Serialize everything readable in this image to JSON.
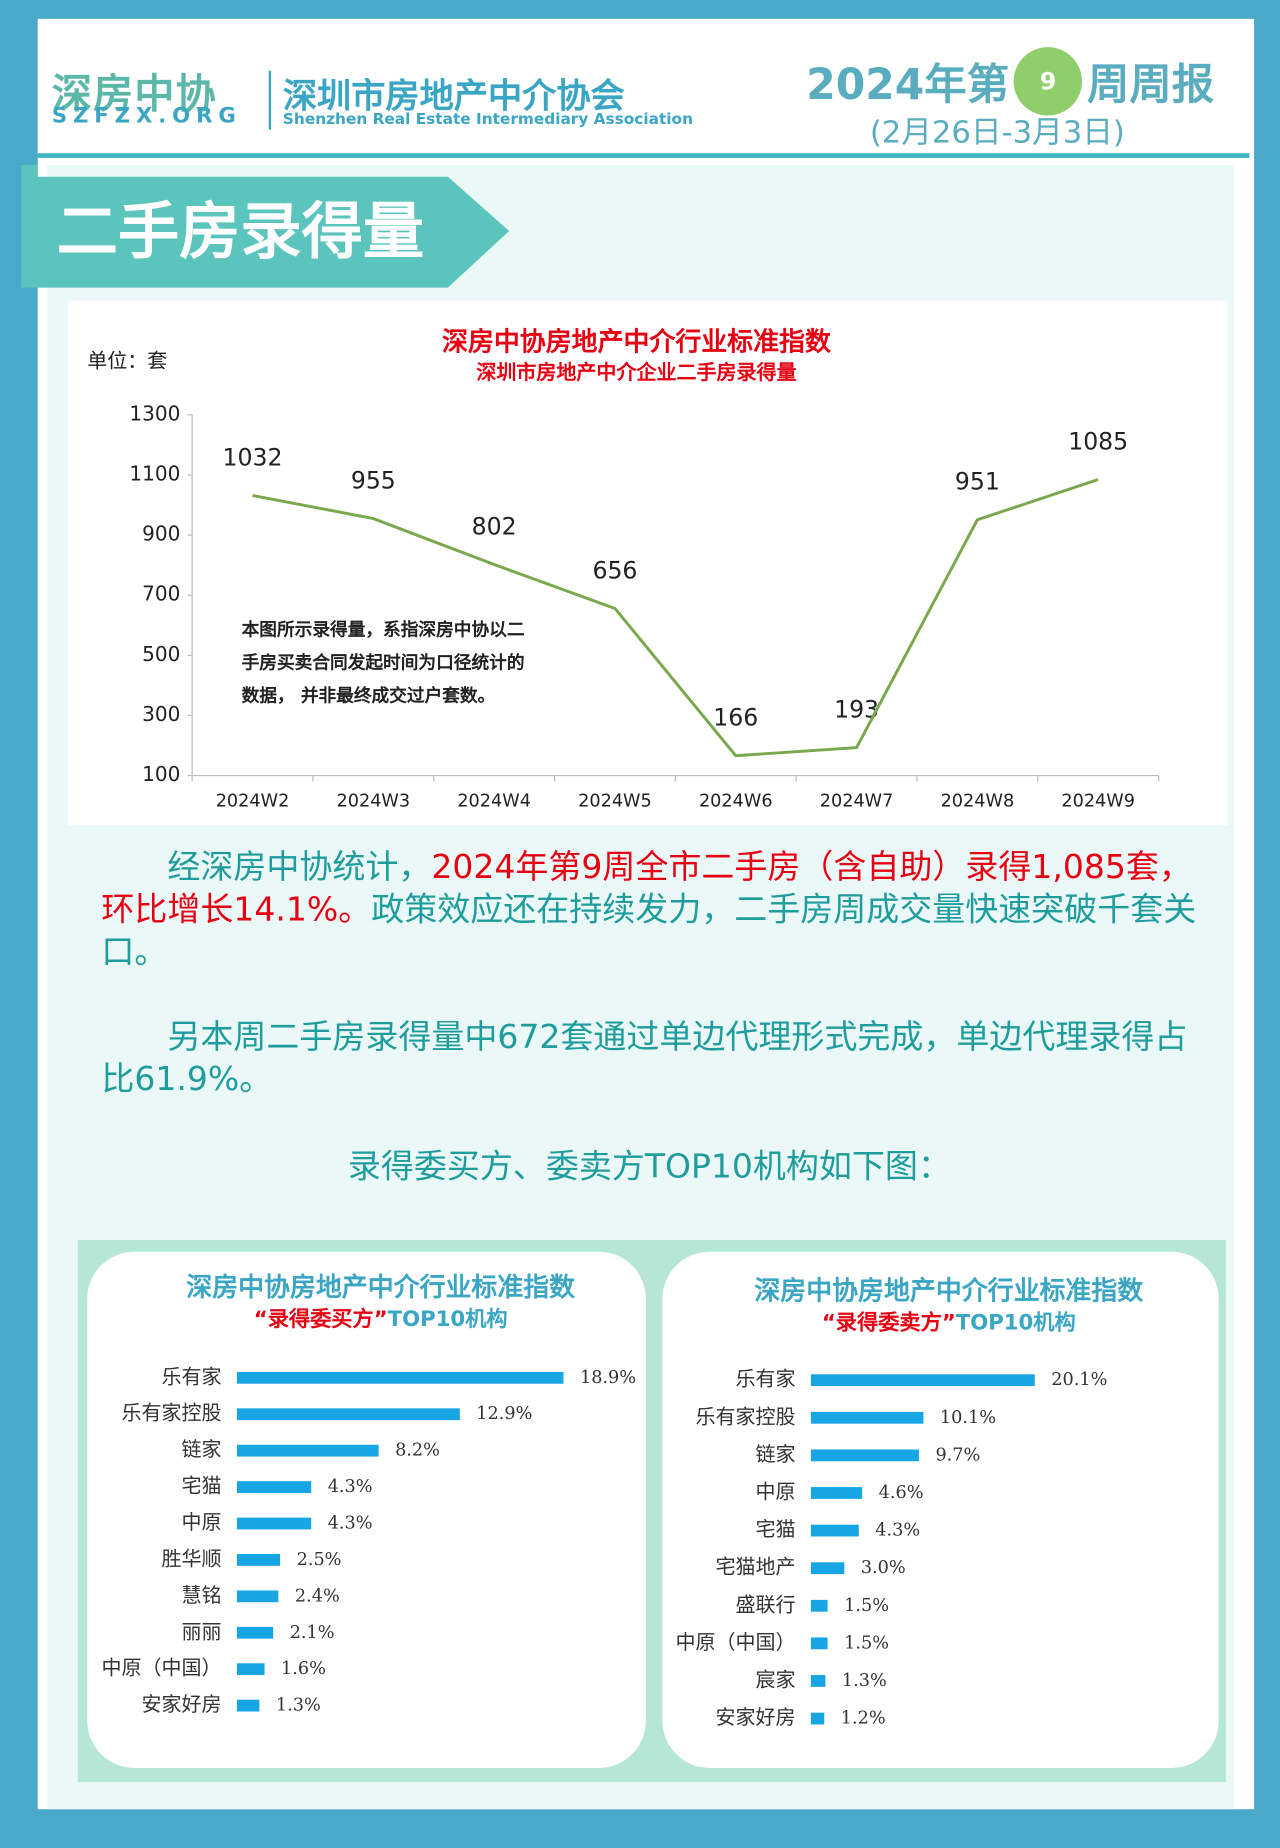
{
  "header": {
    "logo_short": "深房中协",
    "logo_domain": "SZFZX.ORG",
    "org_name": "深圳市房地产中介协会",
    "org_name_en": "Shenzhen Real Estate Intermediary Association",
    "issue_prefix": "2024年第",
    "issue_number": "9",
    "issue_suffix": "周周报",
    "date_range": "(2月26日-3月3日)"
  },
  "section_title": "二手房录得量",
  "paragraphs": [
    {
      "runs": [
        {
          "text": "经深房中协统计，",
          "color": "#1f9c9c"
        },
        {
          "text": "2024年第9周全市二手房（含自助）录得1,085套，环比增长14.1%。",
          "color": "#e60012"
        },
        {
          "text": "政策效应还在持续发力，二手房周成交量快速突破千套关口。",
          "color": "#1f9c9c"
        }
      ]
    },
    {
      "runs": [
        {
          "text": "另本周二手房录得量中672套通过单边代理形式完成，单边代理录得占比61.9%。",
          "color": "#1f9c9c"
        }
      ]
    },
    {
      "runs": [
        {
          "text": "录得委买方、委卖方TOP10机构如下图：",
          "color": "#1f9c9c"
        }
      ]
    }
  ],
  "chart_data": [
    {
      "type": "line",
      "title": "深房中协房地产中介行业标准指数",
      "subtitle": "深圳市房地产中介企业二手房录得量",
      "unit_label": "单位：套",
      "annotation": "本图所示录得量，系指深房中协以二手房买卖合同发起时间为口径统计的数据， 并非最终成交过户套数。",
      "categories": [
        "2024W2",
        "2024W3",
        "2024W4",
        "2024W5",
        "2024W6",
        "2024W7",
        "2024W8",
        "2024W9"
      ],
      "values": [
        1032,
        955,
        802,
        656,
        166,
        193,
        951,
        1085
      ],
      "color": "#7aa84e",
      "ylim": [
        100,
        1300
      ],
      "yticks": [
        100,
        300,
        500,
        700,
        900,
        1100,
        1300
      ]
    },
    {
      "type": "bar",
      "orientation": "horizontal",
      "title": "深房中协房地产中介行业标准指数",
      "subtitle_highlight": "“录得委买方”",
      "subtitle": "TOP10机构",
      "categories": [
        "乐有家",
        "乐有家控股",
        "链家",
        "宅猫",
        "中原",
        "胜华顺",
        "慧铭",
        "丽丽",
        "中原（中国）",
        "安家好房"
      ],
      "values": [
        18.9,
        12.9,
        8.2,
        4.3,
        4.3,
        2.5,
        2.4,
        2.1,
        1.6,
        1.3
      ],
      "value_labels": [
        "18.9%",
        "12.9%",
        "8.2%",
        "4.3%",
        "4.3%",
        "2.5%",
        "2.4%",
        "2.1%",
        "1.6%",
        "1.3%"
      ],
      "color": "#17a5e4"
    },
    {
      "type": "bar",
      "orientation": "horizontal",
      "title": "深房中协房地产中介行业标准指数",
      "subtitle_highlight": "“录得委卖方”",
      "subtitle": "TOP10机构",
      "categories": [
        "乐有家",
        "乐有家控股",
        "链家",
        "中原",
        "宅猫",
        "宅猫地产",
        "盛联行",
        "中原（中国）",
        "宸家",
        "安家好房"
      ],
      "values": [
        20.1,
        10.1,
        9.7,
        4.6,
        4.3,
        3.0,
        1.5,
        1.5,
        1.3,
        1.2
      ],
      "value_labels": [
        "20.1%",
        "10.1%",
        "9.7%",
        "4.6%",
        "4.3%",
        "3.0%",
        "1.5%",
        "1.5%",
        "1.3%",
        "1.2%"
      ],
      "color": "#17a5e4"
    }
  ]
}
